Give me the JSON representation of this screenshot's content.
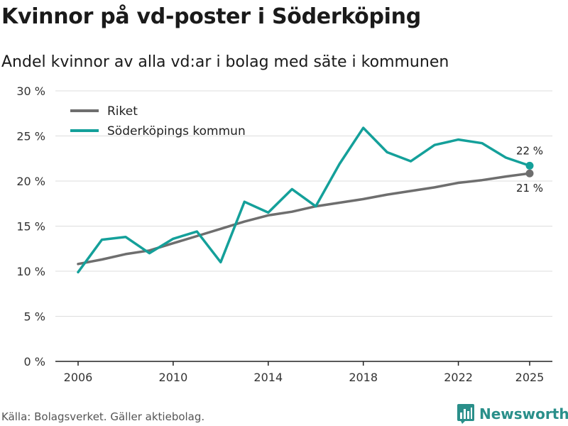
{
  "header": {
    "title": "Kvinnor på vd-poster i Söderköping",
    "subtitle": "Andel kvinnor av alla vd:ar i bolag med säte i kommunen"
  },
  "footer": {
    "source": "Källa: Bolagsverket. Gäller aktiebolag.",
    "brand": "Newsworthy"
  },
  "colors": {
    "riket": "#6e6e6e",
    "kommun": "#14a09a",
    "grid": "#dddddd",
    "brand": "#2a8f8a"
  },
  "chart_data": {
    "type": "line",
    "title": "Kvinnor på vd-poster i Söderköping",
    "subtitle": "Andel kvinnor av alla vd:ar i bolag med säte i kommunen",
    "xlabel": "",
    "ylabel": "",
    "x": [
      2006,
      2007,
      2008,
      2009,
      2010,
      2011,
      2012,
      2013,
      2014,
      2015,
      2016,
      2017,
      2018,
      2019,
      2020,
      2021,
      2022,
      2023,
      2024,
      2025
    ],
    "xticks": [
      "2006",
      "2010",
      "2014",
      "2018",
      "2022",
      "2025"
    ],
    "xtick_values": [
      2006,
      2010,
      2014,
      2018,
      2022,
      2025
    ],
    "ylim": [
      0,
      30
    ],
    "yticks": [
      "0 %",
      "5 %",
      "10 %",
      "15 %",
      "20 %",
      "25 %",
      "30 %"
    ],
    "ytick_values": [
      0,
      5,
      10,
      15,
      20,
      25,
      30
    ],
    "grid": true,
    "legend_position": "top-left",
    "series": [
      {
        "name": "Riket",
        "color": "#6e6e6e",
        "values": [
          10.8,
          11.3,
          11.9,
          12.3,
          13.1,
          13.9,
          14.7,
          15.5,
          16.2,
          16.6,
          17.2,
          17.6,
          18.0,
          18.5,
          18.9,
          19.3,
          19.8,
          20.1,
          20.5,
          20.85
        ],
        "end_label": "21 %"
      },
      {
        "name": "Söderköpings kommun",
        "color": "#14a09a",
        "values": [
          9.9,
          13.5,
          13.8,
          12.0,
          13.6,
          14.4,
          11.0,
          17.7,
          16.5,
          19.1,
          17.2,
          21.9,
          25.9,
          23.2,
          22.2,
          24.0,
          24.6,
          24.2,
          22.6,
          21.7
        ],
        "end_label": "22 %"
      }
    ]
  }
}
